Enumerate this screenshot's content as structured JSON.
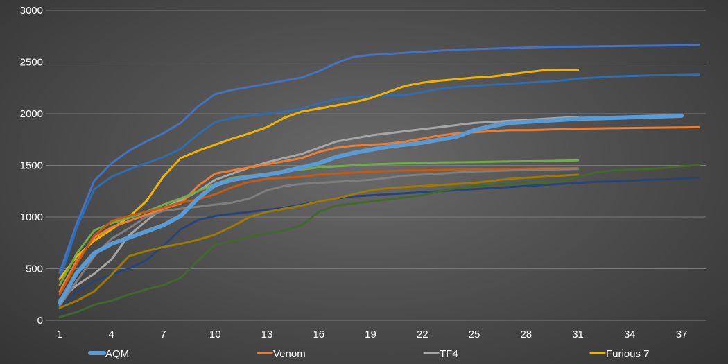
{
  "chart_data": {
    "type": "line",
    "title": "",
    "xlabel": "",
    "ylabel": "",
    "xlim": [
      1,
      38
    ],
    "ylim": [
      0,
      3000
    ],
    "grid": true,
    "legend_position": "bottom",
    "x_ticks": [
      1,
      4,
      7,
      10,
      13,
      16,
      19,
      22,
      25,
      28,
      31,
      34,
      37
    ],
    "y_ticks": [
      0,
      500,
      1000,
      1500,
      2000,
      2500,
      3000
    ],
    "series": [
      {
        "name": "",
        "color": "#4472c4",
        "width": 3,
        "values": [
          460,
          940,
          1350,
          1520,
          1640,
          1730,
          1810,
          1910,
          2070,
          2190,
          2230,
          2260,
          2290,
          2320,
          2350,
          2410,
          2490,
          2550,
          2570,
          2580,
          2590,
          2600,
          2610,
          2620,
          2625,
          2630,
          2635,
          2640,
          2645,
          2648,
          2650,
          2652,
          2654,
          2656,
          2658,
          2660,
          2662,
          2665
        ]
      },
      {
        "name": "",
        "color": "#2e6db0",
        "width": 3,
        "values": [
          390,
          900,
          1270,
          1390,
          1460,
          1520,
          1580,
          1660,
          1800,
          1920,
          1960,
          1980,
          2000,
          2020,
          2050,
          2100,
          2140,
          2160,
          2170,
          2175,
          2180,
          2210,
          2240,
          2260,
          2270,
          2280,
          2290,
          2300,
          2310,
          2320,
          2340,
          2350,
          2360,
          2365,
          2370,
          2372,
          2375,
          2378
        ]
      },
      {
        "name": "Furious 7",
        "color": "#f0b400",
        "width": 3,
        "values": [
          400,
          620,
          770,
          880,
          1000,
          1150,
          1390,
          1570,
          1640,
          1700,
          1760,
          1810,
          1870,
          1960,
          2020,
          2050,
          2080,
          2110,
          2150,
          2210,
          2270,
          2300,
          2320,
          2335,
          2350,
          2360,
          2380,
          2400,
          2420,
          2425,
          2425
        ]
      },
      {
        "name": "TF4",
        "color": "#a6a6a6",
        "width": 3,
        "values": [
          200,
          340,
          450,
          590,
          820,
          960,
          1090,
          1160,
          1250,
          1360,
          1420,
          1480,
          1530,
          1570,
          1610,
          1670,
          1730,
          1760,
          1790,
          1810,
          1830,
          1850,
          1870,
          1890,
          1910,
          1920,
          1930,
          1940,
          1950,
          1960,
          1970
        ]
      },
      {
        "name": "AQM",
        "color": "#5b9bd5",
        "width": 6,
        "values": [
          170,
          460,
          650,
          740,
          800,
          860,
          920,
          1010,
          1180,
          1310,
          1360,
          1390,
          1410,
          1440,
          1480,
          1520,
          1580,
          1620,
          1650,
          1680,
          1700,
          1720,
          1750,
          1780,
          1840,
          1880,
          1910,
          1920,
          1930,
          1940,
          1950,
          1955,
          1960,
          1965,
          1970,
          1975,
          1980
        ]
      },
      {
        "name": "Venom",
        "color": "#ed7d31",
        "width": 3,
        "values": [
          280,
          580,
          800,
          900,
          960,
          1020,
          1080,
          1130,
          1300,
          1420,
          1450,
          1480,
          1510,
          1540,
          1570,
          1630,
          1670,
          1690,
          1700,
          1710,
          1730,
          1760,
          1790,
          1810,
          1820,
          1830,
          1840,
          1840,
          1845,
          1850,
          1855,
          1858,
          1860,
          1862,
          1864,
          1866,
          1868,
          1870
        ]
      },
      {
        "name": "",
        "color": "#70ad47",
        "width": 3,
        "values": [
          340,
          650,
          870,
          940,
          990,
          1050,
          1120,
          1180,
          1250,
          1320,
          1380,
          1400,
          1420,
          1440,
          1460,
          1480,
          1490,
          1500,
          1510,
          1515,
          1520,
          1525,
          1528,
          1530,
          1532,
          1535,
          1538,
          1540,
          1542,
          1545,
          1548
        ]
      },
      {
        "name": "",
        "color": "#c55a11",
        "width": 3,
        "values": [
          250,
          550,
          820,
          960,
          1010,
          1050,
          1090,
          1140,
          1170,
          1220,
          1290,
          1340,
          1370,
          1380,
          1390,
          1410,
          1420,
          1430,
          1440,
          1445,
          1450,
          1452,
          1455,
          1458,
          1460,
          1462,
          1465,
          1468,
          1470,
          1472,
          1475
        ]
      },
      {
        "name": "",
        "color": "#7f7f7f",
        "width": 3,
        "values": [
          140,
          380,
          620,
          790,
          890,
          1000,
          1060,
          1080,
          1100,
          1120,
          1140,
          1180,
          1260,
          1300,
          1320,
          1330,
          1340,
          1350,
          1360,
          1380,
          1400,
          1410,
          1420,
          1430,
          1440,
          1445,
          1450,
          1455,
          1460,
          1462,
          1465
        ]
      },
      {
        "name": "",
        "color": "#264478",
        "width": 3,
        "values": [
          100,
          280,
          380,
          440,
          500,
          580,
          720,
          880,
          970,
          1010,
          1030,
          1050,
          1070,
          1090,
          1120,
          1150,
          1180,
          1200,
          1210,
          1220,
          1230,
          1240,
          1250,
          1260,
          1270,
          1280,
          1290,
          1300,
          1310,
          1320,
          1330,
          1340,
          1345,
          1350,
          1360,
          1365,
          1372,
          1380
        ]
      },
      {
        "name": "",
        "color": "#9e7a00",
        "width": 3,
        "values": [
          120,
          190,
          280,
          440,
          620,
          670,
          710,
          740,
          780,
          830,
          910,
          1000,
          1050,
          1080,
          1110,
          1150,
          1180,
          1220,
          1260,
          1280,
          1290,
          1300,
          1310,
          1320,
          1330,
          1350,
          1370,
          1380,
          1390,
          1400,
          1410
        ]
      },
      {
        "name": "",
        "color": "#43682b",
        "width": 3,
        "values": [
          30,
          80,
          150,
          190,
          250,
          300,
          340,
          410,
          580,
          730,
          770,
          810,
          840,
          870,
          920,
          1050,
          1110,
          1130,
          1150,
          1170,
          1190,
          1210,
          1250,
          1280,
          1300,
          1310,
          1320,
          1330,
          1330,
          1340,
          1390,
          1430,
          1450,
          1460,
          1465,
          1475,
          1490,
          1505
        ]
      }
    ]
  }
}
